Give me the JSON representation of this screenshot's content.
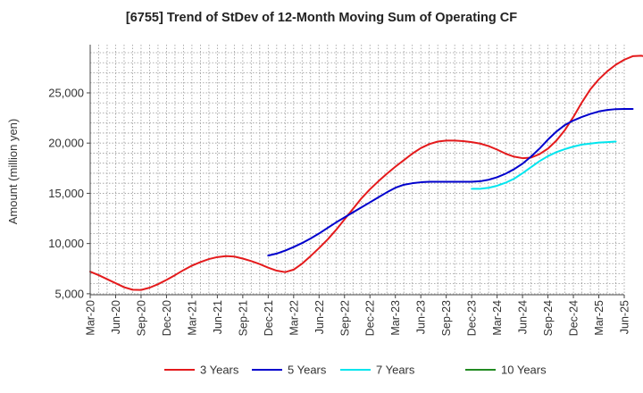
{
  "chart_data": {
    "type": "line",
    "title": "[6755]  Trend of StDev of 12-Month Moving Sum of Operating CF",
    "xlabel": "",
    "ylabel": "Amount (million yen)",
    "ylim": [
      4900,
      29800
    ],
    "yticks": [
      5000,
      10000,
      15000,
      20000,
      25000
    ],
    "ytick_labels": [
      "5,000",
      "10,000",
      "15,000",
      "20,000",
      "25,000"
    ],
    "xticks": [
      "Mar-20",
      "Jun-20",
      "Sep-20",
      "Dec-20",
      "Mar-21",
      "Jun-21",
      "Sep-21",
      "Dec-21",
      "Mar-22",
      "Jun-22",
      "Sep-22",
      "Dec-22",
      "Mar-23",
      "Jun-23",
      "Sep-23",
      "Dec-23",
      "Mar-24",
      "Jun-24",
      "Sep-24",
      "Dec-24",
      "Mar-25",
      "Jun-25"
    ],
    "grid": true,
    "legend_position": "bottom",
    "series": [
      {
        "name": "3 Years",
        "color": "#e41a1c",
        "start_month_index": 0,
        "values": [
          7200,
          6850,
          6450,
          6050,
          5650,
          5400,
          5380,
          5600,
          5950,
          6380,
          6850,
          7350,
          7800,
          8150,
          8450,
          8650,
          8750,
          8700,
          8500,
          8250,
          7950,
          7600,
          7300,
          7150,
          7400,
          8000,
          8750,
          9550,
          10400,
          11350,
          12400,
          13450,
          14500,
          15400,
          16200,
          16950,
          17650,
          18300,
          18950,
          19500,
          19900,
          20150,
          20250,
          20250,
          20200,
          20100,
          19950,
          19700,
          19350,
          18950,
          18650,
          18500,
          18550,
          18900,
          19450,
          20250,
          21300,
          22600,
          24050,
          25350,
          26350,
          27150,
          27800,
          28300,
          28650,
          28700,
          28550,
          28200
        ]
      },
      {
        "name": "5 Years",
        "color": "#0000cd",
        "start_month_index": 21,
        "values": [
          8800,
          9000,
          9300,
          9650,
          10050,
          10500,
          11000,
          11550,
          12100,
          12600,
          13100,
          13600,
          14100,
          14600,
          15100,
          15550,
          15850,
          16000,
          16100,
          16150,
          16150,
          16150,
          16150,
          16150,
          16150,
          16200,
          16350,
          16600,
          16950,
          17400,
          17950,
          18650,
          19450,
          20350,
          21150,
          21800,
          22250,
          22600,
          22900,
          23150,
          23300,
          23380,
          23400,
          23400
        ]
      },
      {
        "name": "7 Years",
        "color": "#00e5ee",
        "start_month_index": 45,
        "values": [
          15450,
          15450,
          15550,
          15750,
          16050,
          16450,
          17000,
          17600,
          18200,
          18700,
          19100,
          19400,
          19650,
          19850,
          19950,
          20050,
          20100,
          20150
        ]
      },
      {
        "name": "10 Years",
        "color": "#228b22",
        "start_month_index": 0,
        "values": []
      }
    ]
  }
}
